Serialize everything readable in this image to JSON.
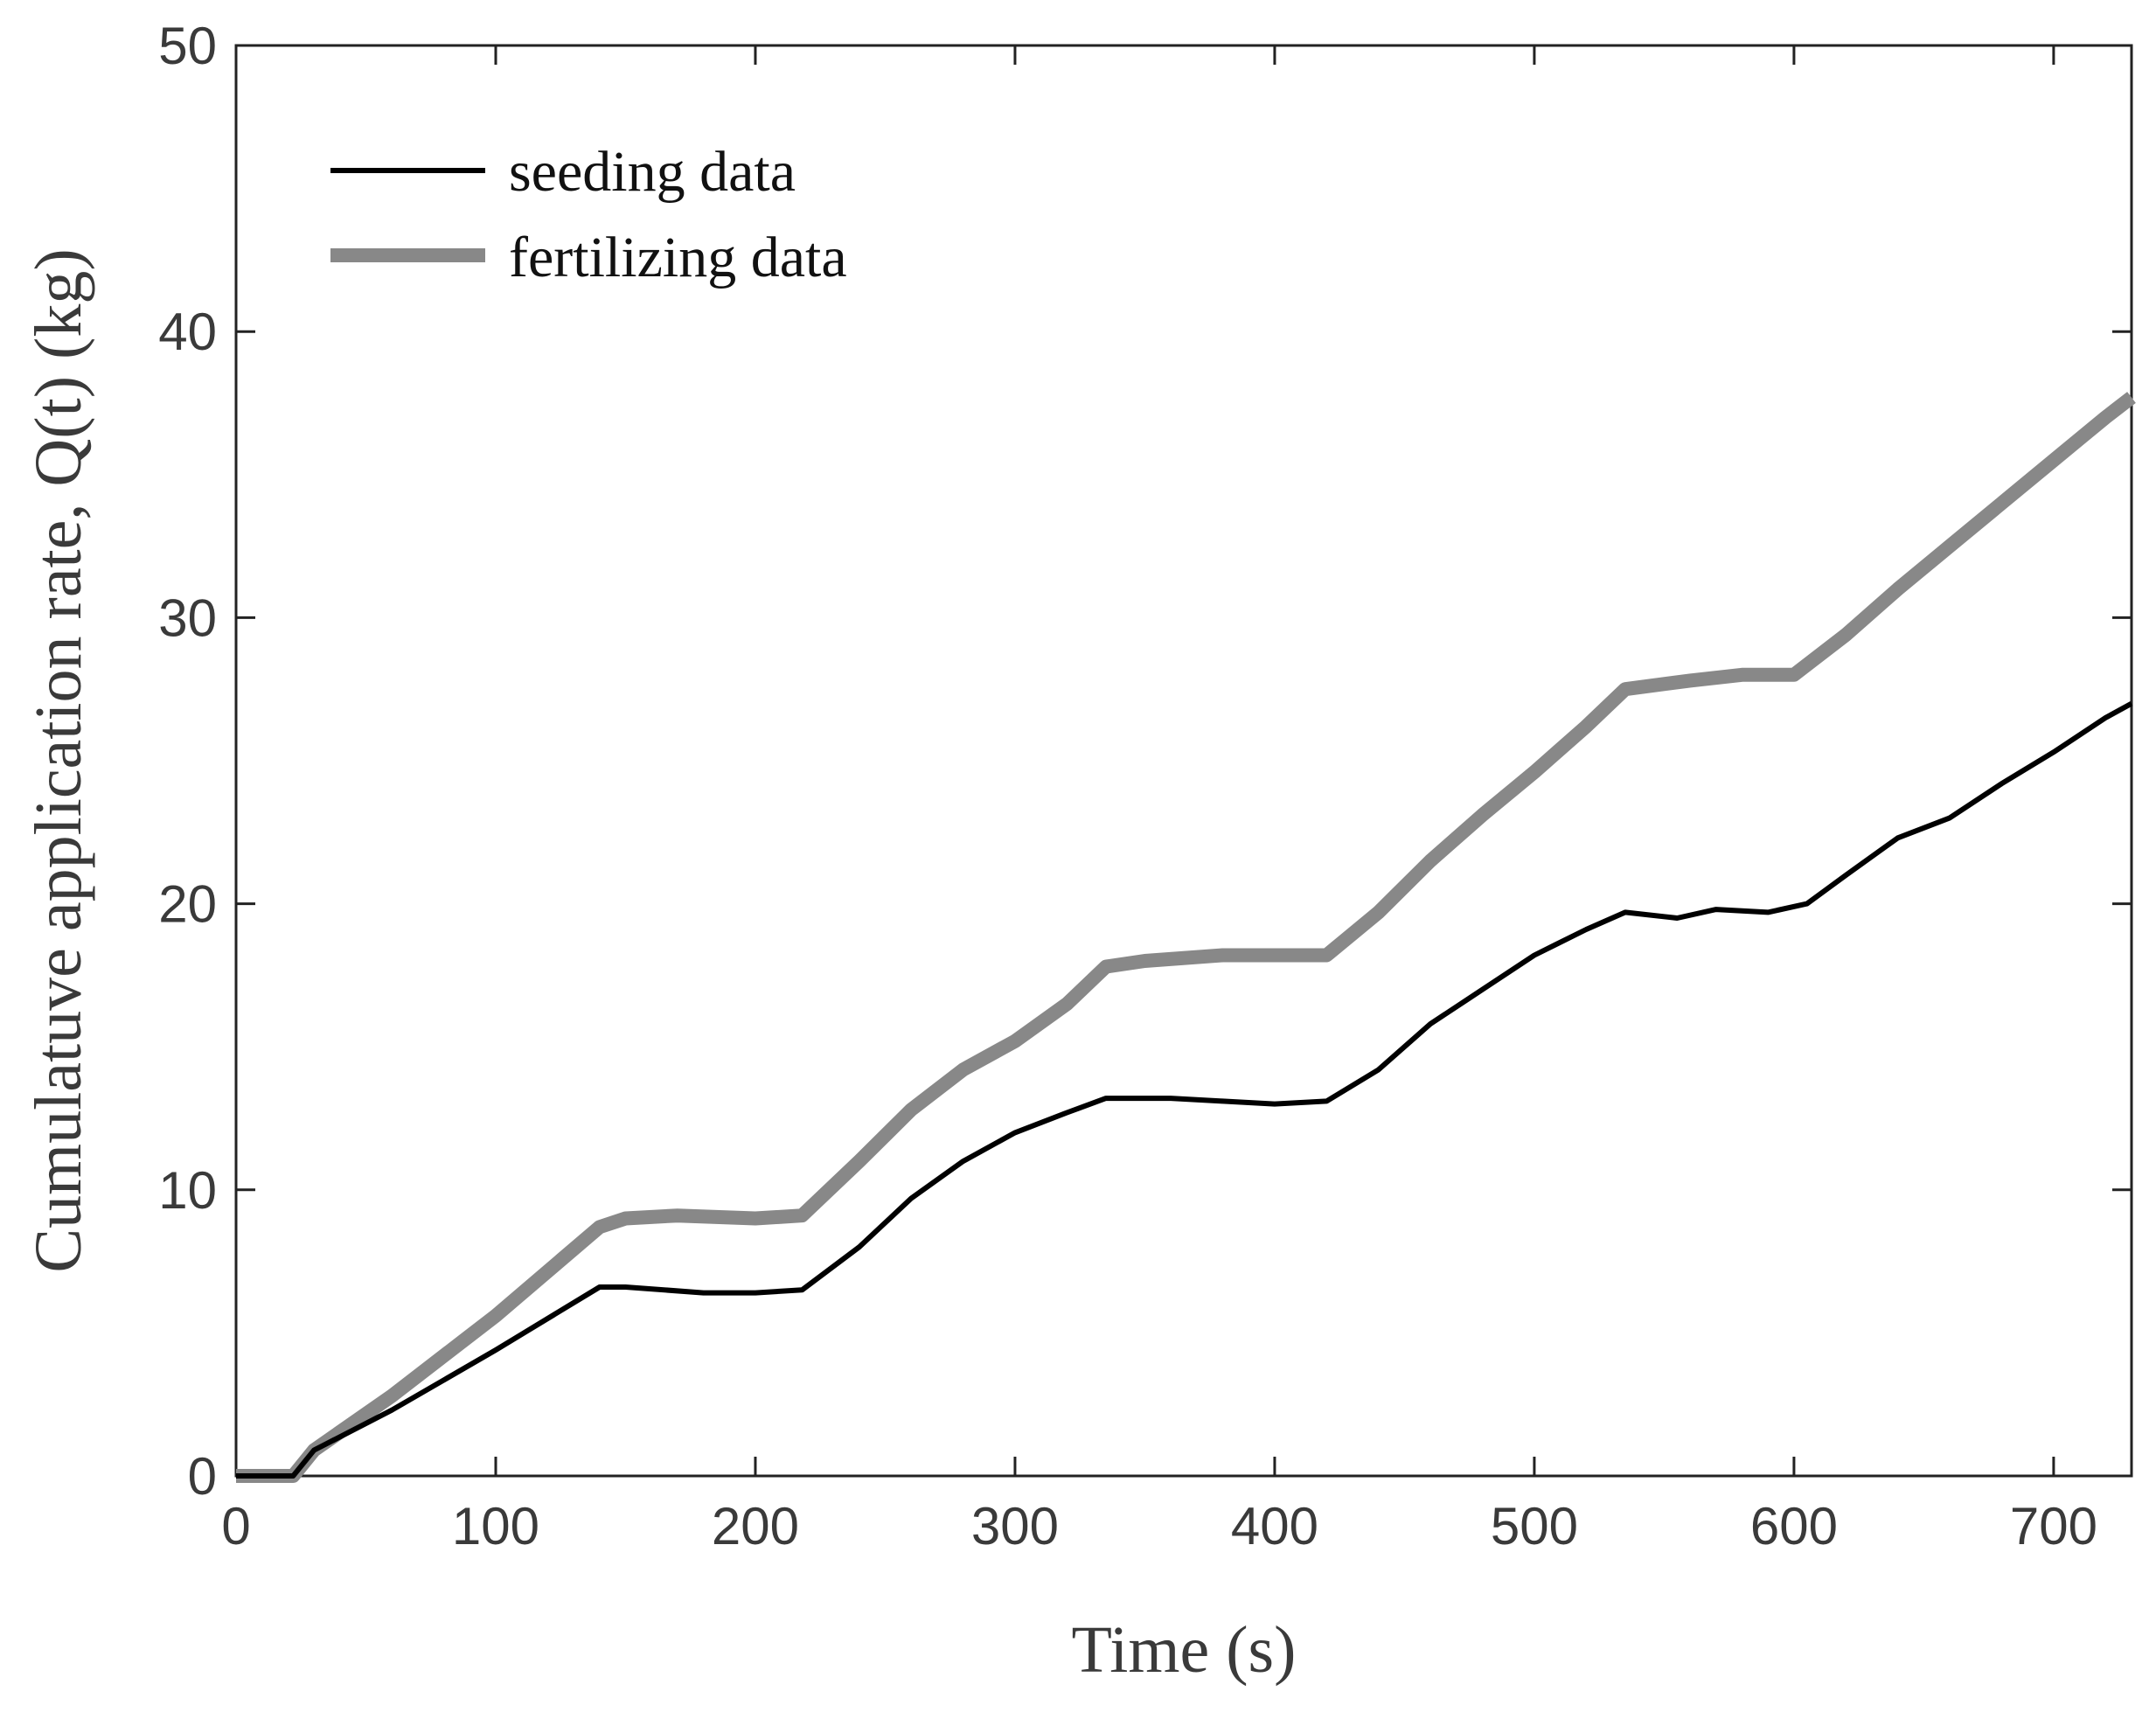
{
  "chart_data": {
    "type": "line",
    "title": "",
    "xlabel": "Time (s)",
    "ylabel": "Cumulatuve application rate,  Q(t) (kg)",
    "xlim": [
      0,
      730
    ],
    "ylim": [
      0,
      50
    ],
    "xticks": [
      0,
      100,
      200,
      300,
      400,
      500,
      600,
      700
    ],
    "yticks": [
      0,
      10,
      20,
      30,
      40,
      50
    ],
    "grid": false,
    "legend_position": "top-left",
    "series": [
      {
        "name": "seeding data",
        "color": "#000000",
        "x": [
          0,
          22,
          30,
          60,
          100,
          140,
          150,
          180,
          200,
          218,
          240,
          260,
          280,
          300,
          320,
          335,
          360,
          380,
          400,
          420,
          440,
          460,
          480,
          500,
          520,
          535,
          555,
          570,
          590,
          605,
          620,
          640,
          660,
          680,
          700,
          720,
          730
        ],
        "y": [
          0,
          0,
          0.9,
          2.3,
          4.4,
          6.6,
          6.6,
          6.4,
          6.4,
          6.5,
          8.0,
          9.7,
          11.0,
          12.0,
          12.7,
          13.2,
          13.2,
          13.1,
          13.0,
          13.1,
          14.2,
          15.8,
          17.0,
          18.2,
          19.1,
          19.7,
          19.5,
          19.8,
          19.7,
          20.0,
          21.0,
          22.3,
          23.0,
          24.2,
          25.3,
          26.5,
          27.0
        ]
      },
      {
        "name": "fertilizing data",
        "color": "#888888",
        "x": [
          0,
          22,
          30,
          60,
          100,
          140,
          150,
          170,
          200,
          218,
          240,
          260,
          280,
          300,
          320,
          335,
          350,
          380,
          400,
          420,
          440,
          460,
          480,
          500,
          520,
          535,
          560,
          580,
          600,
          620,
          640,
          660,
          680,
          700,
          720,
          730
        ],
        "y": [
          0,
          0,
          0.9,
          2.8,
          5.6,
          8.7,
          9.0,
          9.1,
          9.0,
          9.1,
          11.0,
          12.8,
          14.2,
          15.2,
          16.5,
          17.8,
          18.0,
          18.2,
          18.2,
          18.2,
          19.7,
          21.5,
          23.1,
          24.6,
          26.2,
          27.5,
          27.8,
          28.0,
          28.0,
          29.4,
          31.0,
          32.5,
          34.0,
          35.5,
          37.0,
          37.7
        ]
      }
    ]
  }
}
